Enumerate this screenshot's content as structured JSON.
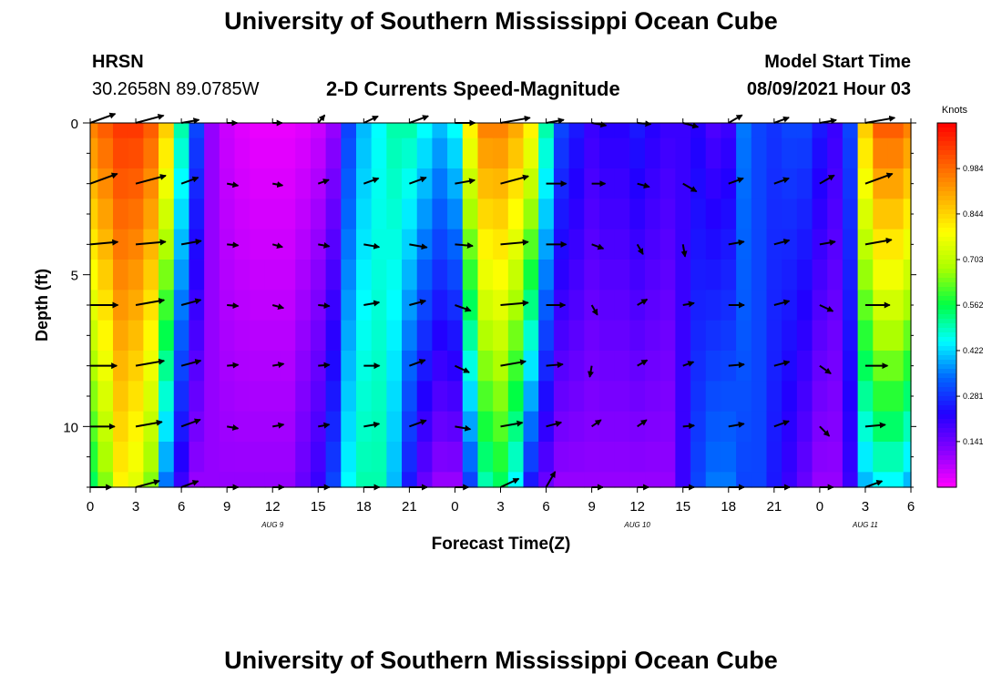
{
  "header": {
    "title": "University of Southern Mississippi Ocean Cube",
    "station_code": "HRSN",
    "station_coords": "30.2658N  89.0785W",
    "plot_title": "2-D Currents Speed-Magnitude",
    "model_start_label": "Model Start Time",
    "model_start_value": "08/09/2021 Hour 03"
  },
  "footer": {
    "title": "University of Southern Mississippi Ocean Cube"
  },
  "colors": {
    "scale": [
      "#ff00ff",
      "#8800ff",
      "#2200ff",
      "#0066ff",
      "#00ffff",
      "#00ff44",
      "#aaff00",
      "#ffff00",
      "#ffaa00",
      "#ff5500",
      "#ff0000"
    ]
  },
  "chart_data": {
    "type": "heatmap",
    "title": "2-D Currents Speed-Magnitude",
    "xlabel": "Forecast Time(Z)",
    "ylabel": "Depth (ft)",
    "colorbar_label": "Knots",
    "colorbar_ticks": [
      "0.984",
      "0.844",
      "0.703",
      "0.562",
      "0.422",
      "0.281",
      "0.141"
    ],
    "colorbar_range": [
      0.0,
      1.125
    ],
    "x_tick_labels": [
      "0",
      "3",
      "6",
      "9",
      "12",
      "15",
      "18",
      "21",
      "0",
      "3",
      "6",
      "9",
      "12",
      "15",
      "18",
      "21",
      "0",
      "3",
      "6"
    ],
    "x_range_hours": [
      0,
      54
    ],
    "date_labels": [
      {
        "text": "AUG 9",
        "hour": 12
      },
      {
        "text": "AUG 10",
        "hour": 36
      },
      {
        "text": "AUG 11",
        "hour": 51
      }
    ],
    "y_tick_labels": [
      "0",
      "5",
      "10"
    ],
    "y_range_ft": [
      0,
      12
    ],
    "time_hours": [
      0,
      1,
      2,
      3,
      4,
      5,
      6,
      7,
      8,
      9,
      10,
      11,
      12,
      13,
      14,
      15,
      16,
      17,
      18,
      19,
      20,
      21,
      22,
      23,
      24,
      25,
      26,
      27,
      28,
      29,
      30,
      31,
      32,
      33,
      34,
      35,
      36,
      37,
      38,
      39,
      40,
      41,
      42,
      43,
      44,
      45,
      46,
      47,
      48,
      49,
      50,
      51,
      52,
      53,
      54
    ],
    "depth_rows_ft": [
      0,
      1,
      2,
      3,
      4,
      5,
      6,
      7,
      8,
      9,
      10,
      11,
      12
    ],
    "surface_speed_knots": [
      0.95,
      1.0,
      1.05,
      1.05,
      1.0,
      0.85,
      0.5,
      0.3,
      0.1,
      0.05,
      0.03,
      0.02,
      0.02,
      0.02,
      0.03,
      0.05,
      0.1,
      0.3,
      0.4,
      0.45,
      0.5,
      0.5,
      0.45,
      0.4,
      0.45,
      0.8,
      0.95,
      0.95,
      0.9,
      0.8,
      0.5,
      0.3,
      0.25,
      0.2,
      0.22,
      0.22,
      0.25,
      0.22,
      0.2,
      0.2,
      0.22,
      0.18,
      0.2,
      0.35,
      0.3,
      0.28,
      0.3,
      0.3,
      0.25,
      0.2,
      0.3,
      0.85,
      1.0,
      1.0,
      0.95
    ],
    "bottom_speed_knots": [
      0.55,
      0.65,
      0.8,
      0.75,
      0.65,
      0.35,
      0.2,
      0.1,
      0.1,
      0.1,
      0.1,
      0.1,
      0.1,
      0.1,
      0.15,
      0.2,
      0.3,
      0.45,
      0.5,
      0.5,
      0.4,
      0.25,
      0.15,
      0.1,
      0.1,
      0.3,
      0.5,
      0.55,
      0.45,
      0.25,
      0.15,
      0.1,
      0.1,
      0.1,
      0.1,
      0.1,
      0.1,
      0.1,
      0.1,
      0.2,
      0.3,
      0.35,
      0.35,
      0.3,
      0.3,
      0.25,
      0.2,
      0.15,
      0.1,
      0.1,
      0.2,
      0.4,
      0.45,
      0.45,
      0.4
    ],
    "vectors": {
      "times_hours": [
        0,
        3,
        6,
        9,
        12,
        15,
        18,
        21,
        24,
        27,
        30,
        33,
        36,
        39,
        42,
        45,
        48,
        51
      ],
      "depths_ft": [
        0,
        2,
        4,
        6,
        8,
        10,
        12
      ],
      "direction_deg": [
        [
          20,
          15,
          10,
          0,
          0,
          50,
          25,
          20,
          0,
          10,
          10,
          -10,
          -5,
          -15,
          30,
          20,
          10,
          10
        ],
        [
          20,
          15,
          20,
          -10,
          -10,
          20,
          20,
          20,
          10,
          15,
          0,
          0,
          -15,
          -30,
          20,
          20,
          30,
          20
        ],
        [
          5,
          5,
          10,
          -5,
          -15,
          -10,
          -10,
          -10,
          -5,
          5,
          0,
          -20,
          -60,
          -80,
          10,
          15,
          10,
          10
        ],
        [
          0,
          10,
          15,
          -5,
          -15,
          -5,
          10,
          15,
          -20,
          5,
          0,
          -60,
          30,
          10,
          0,
          15,
          -25,
          0
        ],
        [
          0,
          10,
          15,
          5,
          10,
          5,
          0,
          20,
          -25,
          10,
          5,
          -100,
          30,
          20,
          5,
          15,
          -35,
          0
        ],
        [
          0,
          10,
          20,
          -10,
          10,
          10,
          10,
          20,
          -10,
          10,
          15,
          35,
          35,
          5,
          10,
          20,
          -45,
          5
        ],
        [
          0,
          15,
          20,
          0,
          0,
          0,
          0,
          0,
          0,
          25,
          60,
          0,
          0,
          0,
          0,
          0,
          0,
          20
        ]
      ],
      "speed_knots": [
        [
          0.8,
          0.9,
          0.4,
          0.05,
          0.02,
          0.05,
          0.3,
          0.5,
          0.5,
          0.95,
          0.4,
          0.25,
          0.2,
          0.3,
          0.3,
          0.3,
          0.35,
          0.95
        ],
        [
          0.9,
          1.0,
          0.4,
          0.1,
          0.05,
          0.1,
          0.3,
          0.4,
          0.5,
          0.9,
          0.5,
          0.2,
          0.15,
          0.3,
          0.3,
          0.3,
          0.35,
          0.9
        ],
        [
          0.85,
          0.95,
          0.5,
          0.1,
          0.05,
          0.1,
          0.3,
          0.4,
          0.4,
          0.85,
          0.5,
          0.15,
          0.1,
          0.15,
          0.3,
          0.3,
          0.3,
          0.8
        ],
        [
          0.85,
          0.9,
          0.5,
          0.1,
          0.1,
          0.1,
          0.3,
          0.35,
          0.35,
          0.85,
          0.45,
          0.1,
          0.1,
          0.1,
          0.3,
          0.3,
          0.25,
          0.7
        ],
        [
          0.8,
          0.9,
          0.5,
          0.1,
          0.1,
          0.1,
          0.3,
          0.35,
          0.3,
          0.75,
          0.35,
          0.1,
          0.1,
          0.1,
          0.3,
          0.3,
          0.2,
          0.6
        ],
        [
          0.7,
          0.8,
          0.5,
          0.1,
          0.1,
          0.1,
          0.3,
          0.4,
          0.3,
          0.6,
          0.3,
          0.1,
          0.1,
          0.1,
          0.3,
          0.3,
          0.2,
          0.5
        ],
        [
          0.55,
          0.7,
          0.4,
          0.1,
          0.1,
          0.1,
          0.3,
          0.4,
          0.2,
          0.5,
          0.4,
          0.1,
          0.1,
          0.1,
          0.3,
          0.3,
          0.2,
          0.4
        ]
      ]
    }
  }
}
